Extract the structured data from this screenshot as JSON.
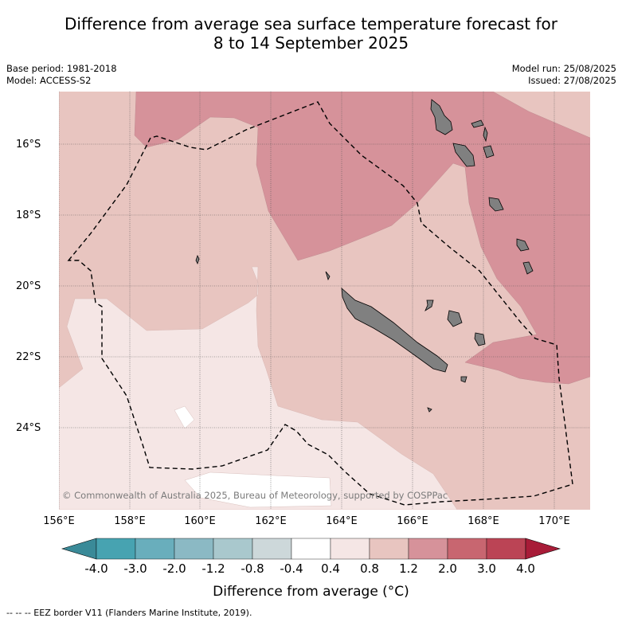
{
  "title_line1": "Difference from average sea surface temperature forecast for",
  "title_line2": "8 to 14 September 2025",
  "base_period": "Base period: 1981-2018",
  "model": "Model: ACCESS-S2",
  "model_run": "Model run: 25/08/2025",
  "issued": "Issued: 27/08/2025",
  "lat_ticks": [
    "16°S",
    "18°S",
    "20°S",
    "22°S",
    "24°S"
  ],
  "lon_ticks": [
    "156°E",
    "158°E",
    "160°E",
    "162°E",
    "164°E",
    "166°E",
    "168°E",
    "170°E"
  ],
  "copyright": "© Commonwealth of Australia 2025, Bureau of Meteorology, supported by COSPPac",
  "colorbar": {
    "labels": [
      "-4.0",
      "-3.0",
      "-2.0",
      "-1.2",
      "-0.8",
      "-0.4",
      "0.4",
      "0.8",
      "1.2",
      "2.0",
      "3.0",
      "4.0"
    ],
    "colors": [
      "#3a8a98",
      "#47a3b1",
      "#69aebc",
      "#8bb9c4",
      "#a9c8cd",
      "#cdd8da",
      "#ffffff",
      "#f5e6e5",
      "#e8c5c0",
      "#d6929a",
      "#c86670",
      "#bb4455",
      "#a81c38"
    ],
    "title": "Difference from average (°C)"
  },
  "map_colors": {
    "band_0_4_0_8": "#f5e6e5",
    "band_0_8_1_2": "#e8c5c0",
    "band_1_2_2_0": "#d6929a",
    "land": "#808080"
  },
  "footer": "--  --  -- EEZ border V11 (Flanders Marine Institute, 2019)."
}
